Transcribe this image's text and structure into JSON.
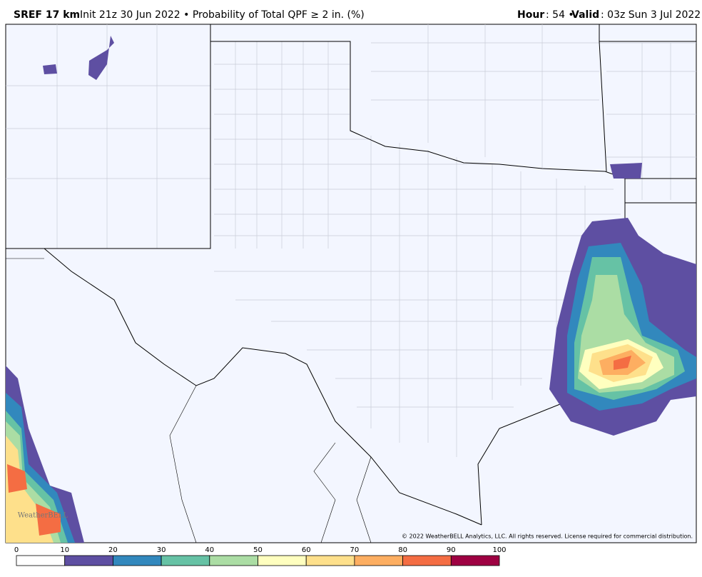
{
  "header": {
    "model": "SREF 17 km",
    "init_product": "Init 21z 30 Jun 2022 • Probability of Total QPF ≥ 2 in. (%)",
    "hour_label": "Hour",
    "hour": ": 54 •",
    "valid_label": "Valid",
    "valid": ": 03z Sun 3 Jul 2022"
  },
  "copyright": "© 2022 WeatherBELL Analytics, LLC. All rights reserved. License required for commercial distribution.",
  "watermark": "WeatherBELL",
  "colorbar": {
    "ticks": [
      0,
      10,
      20,
      30,
      40,
      50,
      60,
      70,
      80,
      90,
      100
    ],
    "colors": [
      "#ffffff",
      "#5e4fa2",
      "#3288bd",
      "#66c2a5",
      "#abdda4",
      "#ffffbf",
      "#fee08b",
      "#fdae61",
      "#f46d43",
      "#9e0142"
    ]
  }
}
